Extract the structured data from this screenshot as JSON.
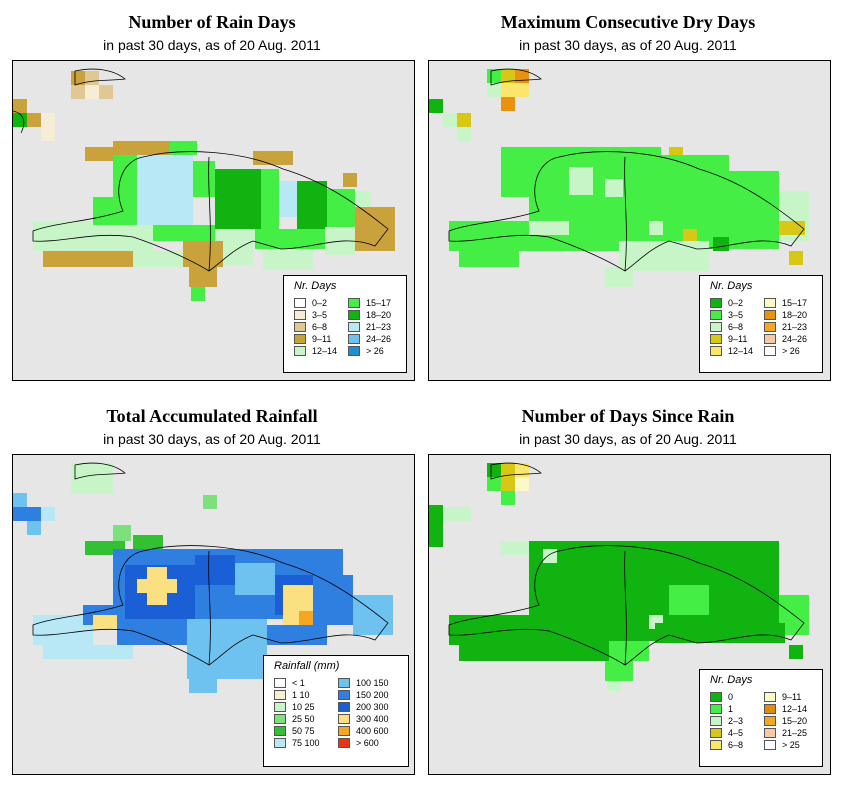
{
  "subtitle_text": "in past 30 days, as of  20 Aug. 2011",
  "panels": [
    {
      "title": "Number of Rain Days",
      "legend_title": "Nr. Days",
      "legend_left": [
        {
          "label": "0–2",
          "color": "#ffffff"
        },
        {
          "label": "3–5",
          "color": "#f7ecd6"
        },
        {
          "label": "6–8",
          "color": "#e0c794"
        },
        {
          "label": "9–11",
          "color": "#c9a23c"
        },
        {
          "label": "12–14",
          "color": "#c8f5c8"
        }
      ],
      "legend_right": [
        {
          "label": "15–17",
          "color": "#44ee44"
        },
        {
          "label": "18–20",
          "color": "#11b311"
        },
        {
          "label": "21–23",
          "color": "#b8e8f5"
        },
        {
          "label": "24–26",
          "color": "#6ec2f0"
        },
        {
          "label": "> 26",
          "color": "#1f8fd1"
        }
      ]
    },
    {
      "title": "Maximum Consecutive Dry Days",
      "legend_title": "Nr. Days",
      "legend_left": [
        {
          "label": "0–2",
          "color": "#11b311"
        },
        {
          "label": "3–5",
          "color": "#44ee44"
        },
        {
          "label": "6–8",
          "color": "#c8f5c8"
        },
        {
          "label": "9–11",
          "color": "#d6c814"
        },
        {
          "label": "12–14",
          "color": "#fbe56a"
        }
      ],
      "legend_right": [
        {
          "label": "15–17",
          "color": "#fcf8c8"
        },
        {
          "label": "18–20",
          "color": "#e89210"
        },
        {
          "label": "21–23",
          "color": "#f5a623"
        },
        {
          "label": "24–26",
          "color": "#f7c9a6"
        },
        {
          "label": "> 26",
          "color": "#ffffff"
        }
      ]
    },
    {
      "title": "Total Accumulated Rainfall",
      "legend_title": "Rainfall (mm)",
      "legend_left": [
        {
          "label": "< 1",
          "color": "#ffffff"
        },
        {
          "label": "1   10",
          "color": "#f7ecd6"
        },
        {
          "label": "10   25",
          "color": "#c8f5c8"
        },
        {
          "label": "25   50",
          "color": "#7de07d"
        },
        {
          "label": "50   75",
          "color": "#33c033"
        },
        {
          "label": "75   100",
          "color": "#b8e8f5"
        }
      ],
      "legend_right": [
        {
          "label": "100   150",
          "color": "#6ec2f0"
        },
        {
          "label": "150   200",
          "color": "#2f7fe0"
        },
        {
          "label": "200   300",
          "color": "#1a5fd6"
        },
        {
          "label": "300   400",
          "color": "#fbe082"
        },
        {
          "label": "400   600",
          "color": "#f5a623"
        },
        {
          "label": "> 600",
          "color": "#ee3311"
        }
      ]
    },
    {
      "title": "Number of Days Since Rain",
      "legend_title": "Nr. Days",
      "legend_left": [
        {
          "label": "0",
          "color": "#11b311"
        },
        {
          "label": "1",
          "color": "#44ee44"
        },
        {
          "label": "2–3",
          "color": "#c8f5c8"
        },
        {
          "label": "4–5",
          "color": "#d6c814"
        },
        {
          "label": "6–8",
          "color": "#fbe56a"
        }
      ],
      "legend_right": [
        {
          "label": "9–11",
          "color": "#fcf8c8"
        },
        {
          "label": "12–14",
          "color": "#e08a10"
        },
        {
          "label": "15–20",
          "color": "#f5a623"
        },
        {
          "label": "21–25",
          "color": "#f7c9a6"
        },
        {
          "label": "> 25",
          "color": "#ffffff"
        }
      ]
    }
  ]
}
